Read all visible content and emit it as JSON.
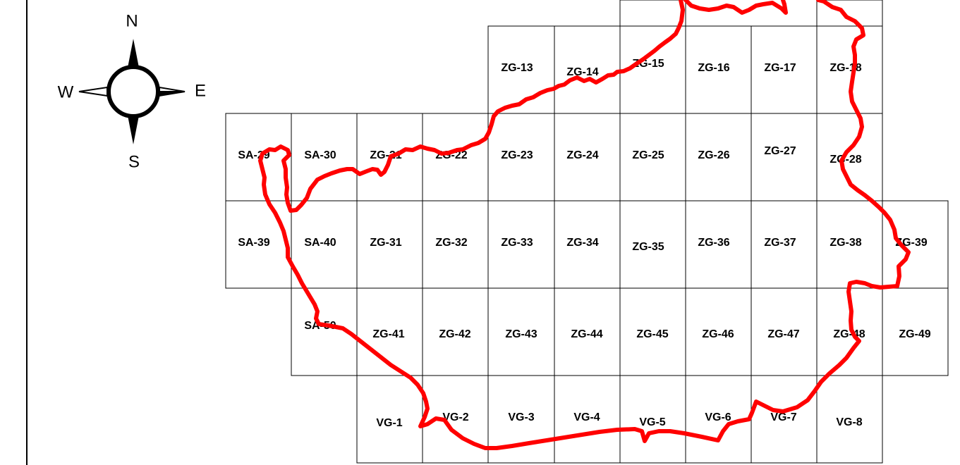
{
  "compass": {
    "north": "N",
    "south": "S",
    "east": "E",
    "west": "W"
  },
  "boundary_color": "#ff0000",
  "grid": {
    "rows": [
      {
        "labels": [
          "ZG-13",
          "ZG-14",
          "ZG-15",
          "ZG-16",
          "ZG-17",
          "ZG-18"
        ]
      },
      {
        "labels": [
          "SA-29",
          "SA-30",
          "ZG-21",
          "ZG-22",
          "ZG-23",
          "ZG-24",
          "ZG-25",
          "ZG-26",
          "ZG-27",
          "ZG-28"
        ]
      },
      {
        "labels": [
          "SA-39",
          "SA-40",
          "ZG-31",
          "ZG-32",
          "ZG-33",
          "ZG-34",
          "ZG-35",
          "ZG-36",
          "ZG-37",
          "ZG-38",
          "ZG-39"
        ]
      },
      {
        "labels": [
          "SA-50",
          "ZG-41",
          "ZG-42",
          "ZG-43",
          "ZG-44",
          "ZG-45",
          "ZG-46",
          "ZG-47",
          "ZG-48",
          "ZG-49"
        ]
      },
      {
        "labels": [
          "VG-1",
          "VG-2",
          "VG-3",
          "VG-4",
          "VG-5",
          "VG-6",
          "VG-7",
          "VG-8"
        ]
      }
    ]
  }
}
